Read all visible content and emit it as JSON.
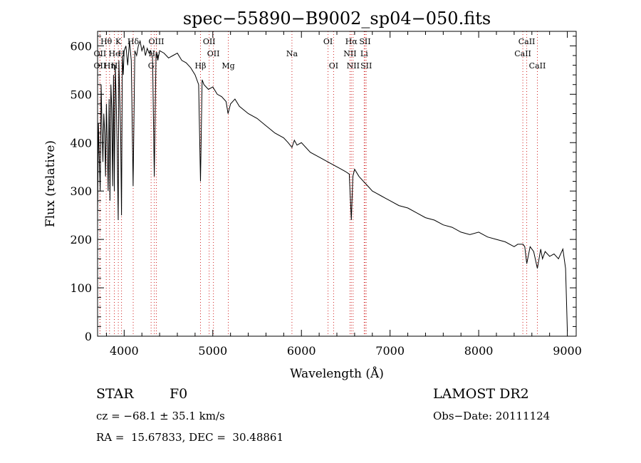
{
  "chart_data": {
    "type": "line",
    "title": "spec−55890−B9002_sp04−050.fits",
    "xlabel": "Wavelength (Å)",
    "ylabel": "Flux (relative)",
    "xlim": [
      3700,
      9100
    ],
    "ylim": [
      0,
      630
    ],
    "xticks": [
      4000,
      5000,
      6000,
      7000,
      8000,
      9000
    ],
    "yticks": [
      0,
      100,
      200,
      300,
      400,
      500,
      600
    ],
    "grid": false,
    "series": [
      {
        "x": [
          3700,
          3710,
          3720,
          3730,
          3740,
          3750,
          3760,
          3770,
          3780,
          3790,
          3800,
          3810,
          3820,
          3830,
          3835,
          3840,
          3850,
          3860,
          3870,
          3880,
          3889,
          3900,
          3910,
          3920,
          3933,
          3940,
          3950,
          3960,
          3970,
          3980,
          3990,
          4000,
          4020,
          4040,
          4060,
          4080,
          4101,
          4120,
          4140,
          4160,
          4180,
          4200,
          4220,
          4240,
          4260,
          4280,
          4300,
          4320,
          4340,
          4360,
          4380,
          4400,
          4450,
          4500,
          4550,
          4600,
          4650,
          4700,
          4750,
          4800,
          4840,
          4861,
          4880,
          4900,
          4950,
          5000,
          5050,
          5100,
          5150,
          5172,
          5200,
          5250,
          5300,
          5400,
          5500,
          5600,
          5700,
          5800,
          5850,
          5893,
          5920,
          5950,
          6000,
          6100,
          6200,
          6300,
          6400,
          6450,
          6500,
          6540,
          6563,
          6580,
          6600,
          6650,
          6700,
          6750,
          6800,
          6850,
          6900,
          6950,
          7000,
          7100,
          7200,
          7300,
          7400,
          7500,
          7600,
          7700,
          7800,
          7900,
          8000,
          8100,
          8200,
          8300,
          8400,
          8440,
          8500,
          8520,
          8542,
          8580,
          8620,
          8662,
          8700,
          8720,
          8750,
          8800,
          8850,
          8900,
          8950,
          8980,
          9000
        ],
        "y": [
          250,
          440,
          360,
          300,
          520,
          430,
          360,
          460,
          420,
          330,
          480,
          390,
          300,
          490,
          410,
          280,
          520,
          470,
          310,
          540,
          300,
          560,
          490,
          400,
          240,
          570,
          500,
          420,
          250,
          580,
          540,
          590,
          600,
          560,
          610,
          570,
          310,
          590,
          580,
          600,
          610,
          590,
          600,
          580,
          595,
          585,
          590,
          575,
          330,
          585,
          570,
          590,
          585,
          575,
          580,
          585,
          570,
          565,
          555,
          540,
          520,
          320,
          530,
          520,
          510,
          515,
          500,
          495,
          485,
          460,
          480,
          490,
          475,
          460,
          450,
          435,
          420,
          410,
          400,
          390,
          405,
          395,
          400,
          380,
          370,
          360,
          350,
          345,
          340,
          335,
          240,
          330,
          345,
          330,
          320,
          310,
          300,
          295,
          290,
          285,
          280,
          270,
          265,
          255,
          245,
          240,
          230,
          225,
          215,
          210,
          215,
          205,
          200,
          195,
          185,
          190,
          190,
          185,
          150,
          185,
          175,
          140,
          180,
          160,
          175,
          165,
          170,
          160,
          180,
          140,
          10
        ]
      }
    ],
    "lines": [
      {
        "name": "Hθ",
        "wavelength": 3798,
        "row": 1
      },
      {
        "name": "K",
        "wavelength": 3934,
        "row": 1
      },
      {
        "name": "Hδ",
        "wavelength": 4102,
        "row": 1
      },
      {
        "name": "OIII",
        "wavelength": 4363,
        "row": 1
      },
      {
        "name": "OII",
        "wavelength": 4959,
        "row": 1
      },
      {
        "name": "OI",
        "wavelength": 6300,
        "row": 1
      },
      {
        "name": "Hα",
        "wavelength": 6563,
        "row": 1
      },
      {
        "name": "SII",
        "wavelength": 6717,
        "row": 1
      },
      {
        "name": "CaII",
        "wavelength": 8542,
        "row": 1
      },
      {
        "name": "OII",
        "wavelength": 3727,
        "row": 2
      },
      {
        "name": "He",
        "wavelength": 3889,
        "row": 2
      },
      {
        "name": "H",
        "wavelength": 3970,
        "row": 2
      },
      {
        "name": "Hγ",
        "wavelength": 4340,
        "row": 2
      },
      {
        "name": "OII",
        "wavelength": 5007,
        "row": 2
      },
      {
        "name": "Na",
        "wavelength": 5893,
        "row": 2
      },
      {
        "name": "NII",
        "wavelength": 6548,
        "row": 2
      },
      {
        "name": "Li",
        "wavelength": 6708,
        "row": 2
      },
      {
        "name": "CaII",
        "wavelength": 8498,
        "row": 2
      },
      {
        "name": "OII",
        "wavelength": 3727,
        "row": 3
      },
      {
        "name": "Hη",
        "wavelength": 3835,
        "row": 3
      },
      {
        "name": "H",
        "wavelength": 3889,
        "row": 3
      },
      {
        "name": "G",
        "wavelength": 4304,
        "row": 3
      },
      {
        "name": "Hβ",
        "wavelength": 4861,
        "row": 3
      },
      {
        "name": "Mg",
        "wavelength": 5175,
        "row": 3
      },
      {
        "name": "OI",
        "wavelength": 6363,
        "row": 3
      },
      {
        "name": "NII",
        "wavelength": 6583,
        "row": 3
      },
      {
        "name": "SII",
        "wavelength": 6731,
        "row": 3
      },
      {
        "name": "CaII",
        "wavelength": 8662,
        "row": 3
      }
    ]
  },
  "footer": {
    "class_label": "STAR",
    "subclass": "F0",
    "survey": "LAMOST DR2",
    "cz": "cz = −68.1 ± 35.1 km/s",
    "obs_date": "Obs−Date: 20111124",
    "coords": "RA =  15.67833, DEC =  30.48861"
  }
}
